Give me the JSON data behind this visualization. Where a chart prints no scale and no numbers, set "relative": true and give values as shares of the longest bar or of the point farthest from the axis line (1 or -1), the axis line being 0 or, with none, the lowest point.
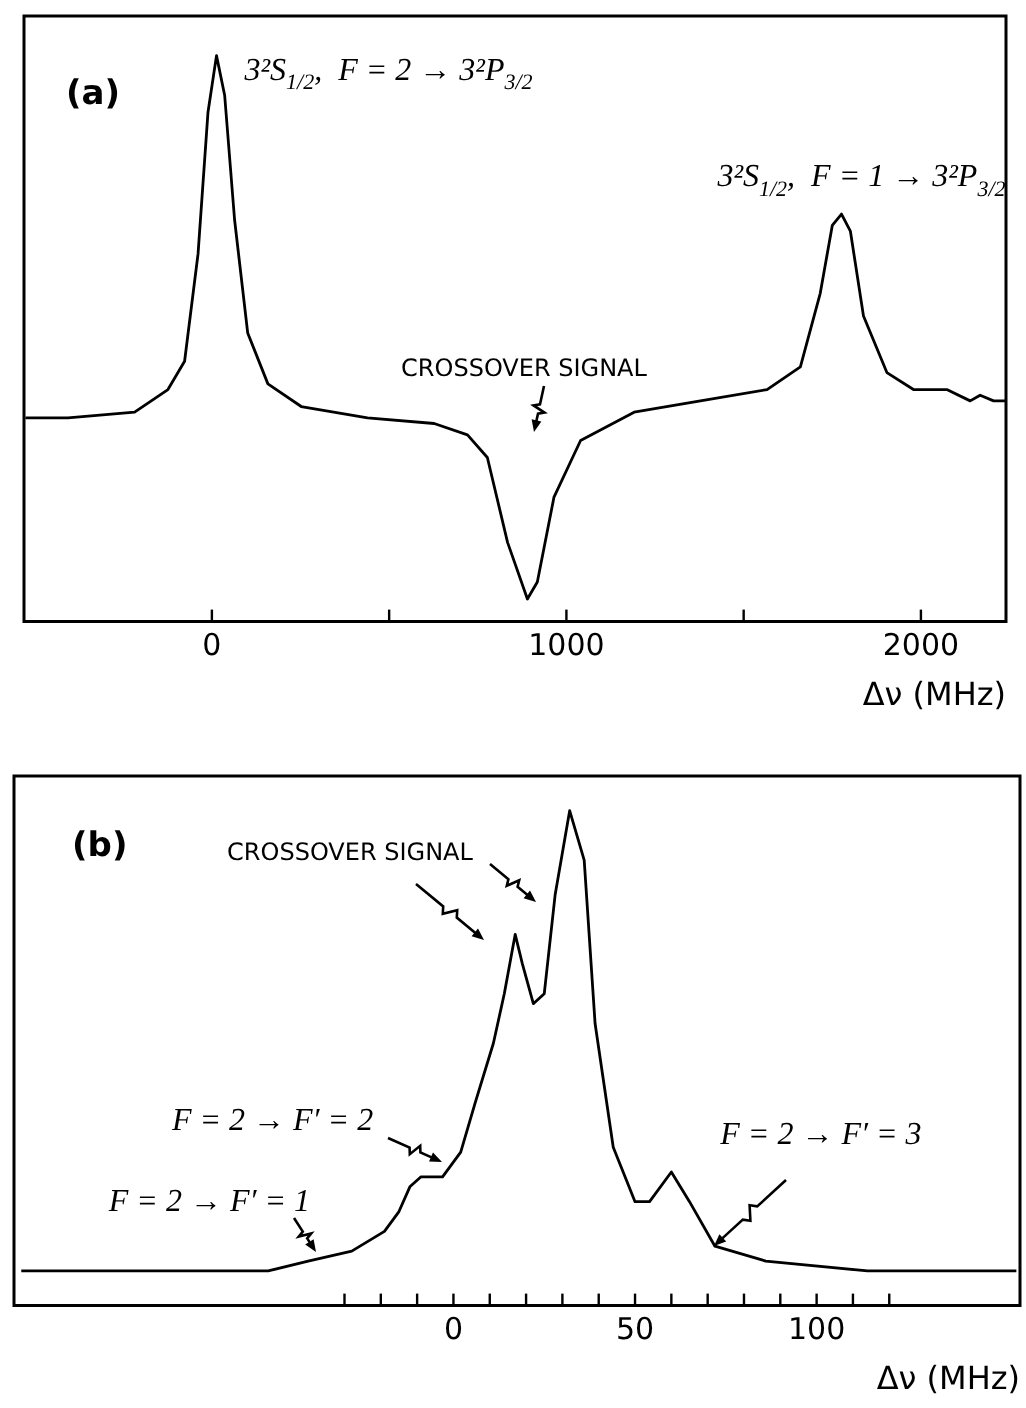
{
  "chart_data": [
    {
      "type": "line",
      "relative": true,
      "color": "#000000",
      "xlabel": "Δν (MHz)",
      "xlim": [
        -530,
        2240
      ],
      "xticks": [
        0,
        {
          "value": 500,
          "label": null
        },
        1000,
        {
          "value": 1500,
          "label": null
        },
        2000
      ],
      "x": [
        -526,
        -406,
        -218,
        -124,
        -77,
        -39,
        -11,
        13,
        36,
        64,
        101,
        158,
        252,
        439,
        627,
        721,
        777,
        834,
        890,
        918,
        965,
        1040,
        1191,
        1378,
        1566,
        1660,
        1716,
        1750,
        1776,
        1801,
        1838,
        1904,
        1979,
        2073,
        2139,
        2167,
        2205,
        2238
      ],
      "values": [
        0.36,
        0.36,
        0.37,
        0.41,
        0.46,
        0.65,
        0.9,
        1.0,
        0.93,
        0.71,
        0.51,
        0.42,
        0.38,
        0.36,
        0.35,
        0.33,
        0.29,
        0.14,
        0.04,
        0.07,
        0.22,
        0.32,
        0.37,
        0.39,
        0.41,
        0.45,
        0.58,
        0.7,
        0.72,
        0.69,
        0.54,
        0.44,
        0.41,
        0.41,
        0.39,
        0.4,
        0.39,
        0.39
      ],
      "annotations": [
        "(a)",
        {
          "text": "3²S$_{1/2}$,  F = 2 → 3²P$_{3/2}$",
          "x": 13,
          "y": 1.0
        },
        {
          "text": "3²S$_{1/2}$,  F = 1 → 3²P$_{3/2}$",
          "x": 1776,
          "y": 0.72
        },
        "CROSSOVER SIGNAL"
      ]
    },
    {
      "type": "line",
      "relative": true,
      "color": "#000000",
      "xlabel": "Δν (MHz)",
      "xlim": [
        -121,
        156
      ],
      "xticks": [
        {
          "value": -30,
          "label": null
        },
        {
          "value": -20,
          "label": null
        },
        {
          "value": -10,
          "label": null
        },
        0,
        {
          "value": 10,
          "label": null
        },
        {
          "value": 20,
          "label": null
        },
        {
          "value": 30,
          "label": null
        },
        {
          "value": 40,
          "label": null
        },
        50,
        {
          "value": 60,
          "label": null
        },
        {
          "value": 70,
          "label": null
        },
        {
          "value": 80,
          "label": null
        },
        {
          "value": 90,
          "label": null
        },
        100,
        {
          "value": 110,
          "label": null
        },
        {
          "value": 120,
          "label": null
        }
      ],
      "x": [
        -119,
        -88,
        -51,
        -40,
        -28,
        -19,
        -15,
        -12,
        -9,
        -3,
        2,
        6,
        11,
        14,
        17,
        19,
        22,
        25,
        28,
        32,
        36,
        39,
        44,
        50,
        54,
        60,
        65,
        72,
        86,
        114,
        155
      ],
      "values": [
        0.07,
        0.07,
        0.07,
        0.09,
        0.11,
        0.15,
        0.19,
        0.24,
        0.26,
        0.26,
        0.31,
        0.41,
        0.53,
        0.63,
        0.75,
        0.69,
        0.61,
        0.63,
        0.83,
        1.0,
        0.9,
        0.57,
        0.32,
        0.21,
        0.21,
        0.27,
        0.21,
        0.12,
        0.09,
        0.07,
        0.07
      ],
      "annotations": [
        "(b)",
        "CROSSOVER SIGNAL",
        {
          "text": "F = 2 → F′ = 2",
          "x": -3,
          "y": 0.29
        },
        {
          "text": "F = 2 → F′ = 1",
          "x": -38,
          "y": 0.11
        },
        {
          "text": "F = 2 → F′ = 3",
          "x": 72,
          "y": 0.12
        }
      ]
    }
  ]
}
